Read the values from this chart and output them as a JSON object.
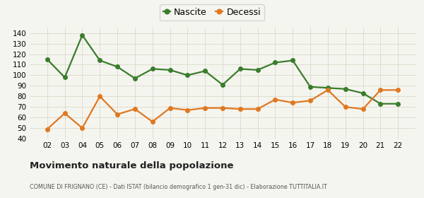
{
  "years": [
    "02",
    "03",
    "04",
    "05",
    "06",
    "07",
    "08",
    "09",
    "10",
    "11",
    "12",
    "13",
    "14",
    "15",
    "16",
    "17",
    "18",
    "19",
    "20",
    "21",
    "22"
  ],
  "nascite": [
    115,
    98,
    138,
    114,
    108,
    97,
    106,
    105,
    100,
    104,
    91,
    106,
    105,
    112,
    114,
    89,
    88,
    87,
    83,
    73,
    73
  ],
  "decessi": [
    49,
    64,
    50,
    80,
    63,
    68,
    56,
    69,
    67,
    69,
    69,
    68,
    68,
    77,
    74,
    76,
    86,
    70,
    68,
    86,
    86
  ],
  "nascite_color": "#3a7d2c",
  "decessi_color": "#e07820",
  "marker": "o",
  "marker_size": 4,
  "line_width": 1.6,
  "ylim": [
    40,
    145
  ],
  "yticks": [
    40,
    50,
    60,
    70,
    80,
    90,
    100,
    110,
    120,
    130,
    140
  ],
  "title": "Movimento naturale della popolazione",
  "subtitle": "COMUNE DI FRIGNANO (CE) - Dati ISTAT (bilancio demografico 1 gen-31 dic) - Elaborazione TUTTITALIA.IT",
  "legend_nascite": "Nascite",
  "legend_decessi": "Decessi",
  "background_color": "#f5f5f0",
  "grid_color": "#ddddcc"
}
